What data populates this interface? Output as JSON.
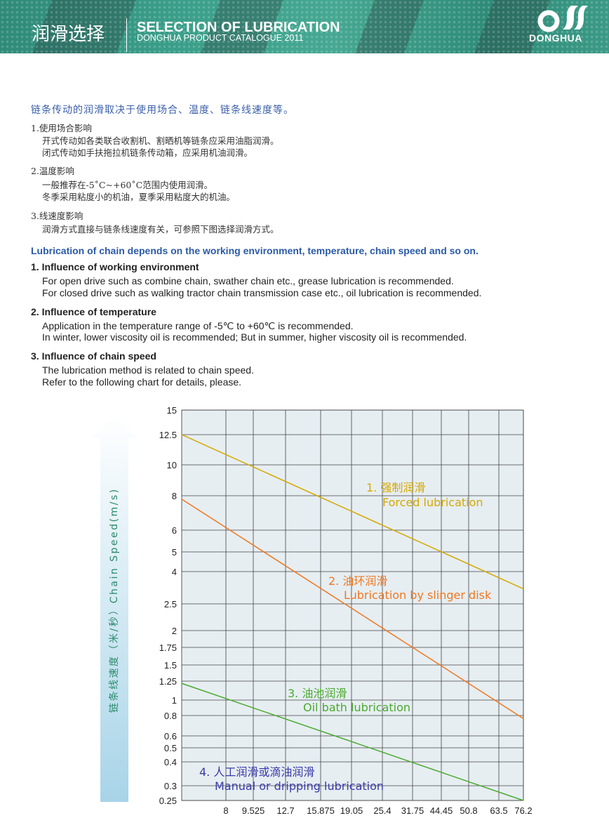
{
  "header": {
    "title_cn": "润滑选择",
    "title_en": "SELECTION OF LUBRICATION",
    "subtitle": "DONGHUA PRODUCT CATALOGUE  2011",
    "logo_text": "DONGHUA",
    "color": "#3a9f8a"
  },
  "cn": {
    "lead": "链条传动的润滑取决于使用场合、温度、链条线速度等。",
    "sections": [
      {
        "heading": "1.使用场合影响",
        "lines": [
          "开式传动如各类联合收割机、割晒机等链条应采用油脂润滑。",
          "闭式传动如手扶拖拉机链条传动箱，应采用机油润滑。"
        ]
      },
      {
        "heading": "2.温度影响",
        "lines": [
          "一般推荐在-5˚C~+60˚C范围内使用润滑。",
          "冬季采用粘度小的机油，夏季采用粘度大的机油。"
        ]
      },
      {
        "heading": "3.线速度影响",
        "lines": [
          "润滑方式直接与链条线速度有关，可参照下图选择润滑方式。"
        ]
      }
    ]
  },
  "en": {
    "lead": "Lubrication of chain depends on the working environment, temperature, chain speed and so on.",
    "sections": [
      {
        "heading": "1. Influence of working environment",
        "lines": [
          "For open drive such as combine chain, swather chain etc., grease lubrication is recommended.",
          "For closed drive such as walking tractor chain transmission case etc., oil lubrication is recommended."
        ]
      },
      {
        "heading": "2. Influence of temperature",
        "lines": [
          "Application in the temperature range of -5℃ to +60℃ is recommended.",
          "In winter, lower viscosity oil is recommended; But in summer, higher viscosity oil is recommended."
        ]
      },
      {
        "heading": "3. Influence of chain speed",
        "lines": [
          "The lubrication method is related to chain speed.",
          "Refer to the following chart for details, please."
        ]
      }
    ]
  },
  "chart_data": {
    "type": "line",
    "ylabel": "链条线速度（米/秒）Chain Speed(m/s)",
    "x_ticks": [
      "8",
      "9.525",
      "12.7",
      "15.875",
      "19.05",
      "25.4",
      "31.75",
      "44.45",
      "50.8",
      "63.5",
      "76.2"
    ],
    "y_ticks": [
      "15",
      "12.5",
      "10",
      "8",
      "6",
      "5",
      "4",
      "2.5",
      "2",
      "1.75",
      "1.5",
      "1.25",
      "1",
      "0.8",
      "0.6",
      "0.5",
      "0.4",
      "0.3",
      "0.25"
    ],
    "ylim": [
      0.25,
      15
    ],
    "grid": true,
    "background": "#e6eef2",
    "series": [
      {
        "name": "1. 强制润滑",
        "name_en": "Forced lubrication",
        "color": "#d7a800",
        "points": [
          {
            "x": "axis-start",
            "y": 12.5
          },
          {
            "x": "76.2",
            "y": 3.2
          }
        ]
      },
      {
        "name": "2. 油环润滑",
        "name_en": "Lubrication by slinger disk",
        "color": "#f07820",
        "points": [
          {
            "x": "axis-start",
            "y": 7.8
          },
          {
            "x": "76.2",
            "y": 0.77
          }
        ]
      },
      {
        "name": "3. 油池润滑",
        "name_en": "Oil bath lubrication",
        "color": "#4caa30",
        "points": [
          {
            "x": "axis-start",
            "y": 1.22
          },
          {
            "x": "76.2",
            "y": 0.25
          }
        ]
      },
      {
        "name": "4. 人工润滑或滴油润滑",
        "name_en": "Manual or dripping lubrication",
        "color": "#3a3aa8",
        "points": []
      }
    ]
  }
}
